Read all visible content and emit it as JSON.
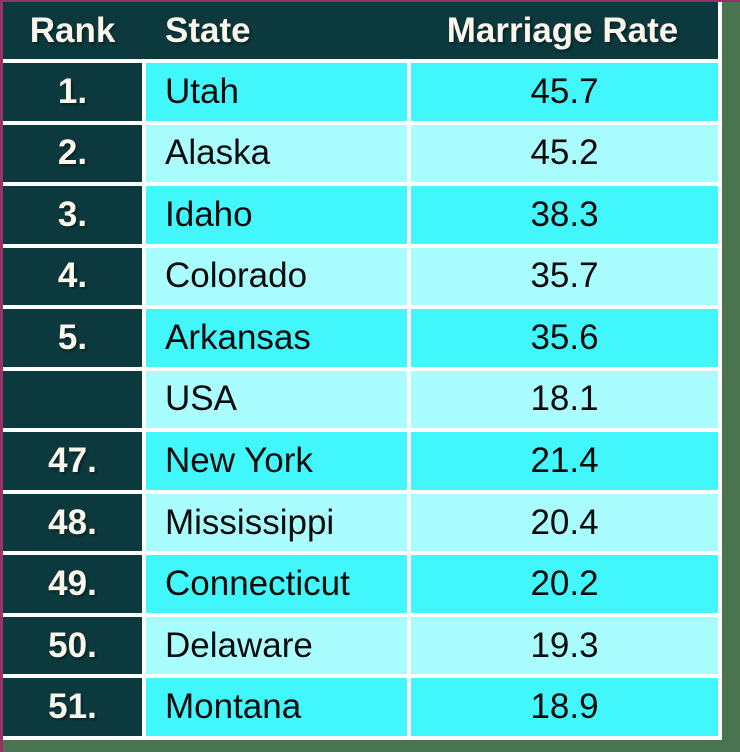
{
  "table": {
    "headers": [
      {
        "label": "Rank"
      },
      {
        "label": "State"
      },
      {
        "label": "Marriage Rate"
      }
    ],
    "rows": [
      {
        "rank": "1.",
        "state": "Utah",
        "rate": "45.7",
        "shade": "bright"
      },
      {
        "rank": "2.",
        "state": "Alaska",
        "rate": "45.2",
        "shade": "light"
      },
      {
        "rank": "3.",
        "state": "Idaho",
        "rate": "38.3",
        "shade": "bright"
      },
      {
        "rank": "4.",
        "state": "Colorado",
        "rate": "35.7",
        "shade": "light"
      },
      {
        "rank": "5.",
        "state": "Arkansas",
        "rate": "35.6",
        "shade": "bright"
      },
      {
        "rank": "",
        "state": "USA",
        "rate": "18.1",
        "shade": "light"
      },
      {
        "rank": "47.",
        "state": "New York",
        "rate": "21.4",
        "shade": "bright"
      },
      {
        "rank": "48.",
        "state": "Mississippi",
        "rate": "20.4",
        "shade": "light"
      },
      {
        "rank": "49.",
        "state": "Connecticut",
        "rate": "20.2",
        "shade": "bright"
      },
      {
        "rank": "50.",
        "state": "Delaware",
        "rate": "19.3",
        "shade": "light"
      },
      {
        "rank": "51.",
        "state": "Montana",
        "rate": "18.9",
        "shade": "bright"
      }
    ]
  },
  "chart_data": {
    "type": "table",
    "columns": [
      "Rank",
      "State",
      "Marriage Rate"
    ],
    "rows": [
      [
        "1.",
        "Utah",
        45.7
      ],
      [
        "2.",
        "Alaska",
        45.2
      ],
      [
        "3.",
        "Idaho",
        38.3
      ],
      [
        "4.",
        "Colorado",
        35.7
      ],
      [
        "5.",
        "Arkansas",
        35.6
      ],
      [
        "",
        "USA",
        18.1
      ],
      [
        "47.",
        "New York",
        21.4
      ],
      [
        "48.",
        "Mississippi",
        20.4
      ],
      [
        "49.",
        "Connecticut",
        20.2
      ],
      [
        "50.",
        "Delaware",
        19.3
      ],
      [
        "51.",
        "Montana",
        18.9
      ]
    ]
  },
  "colors": {
    "magenta": "#993366",
    "green": "#4A7350",
    "teal": "#0C393D",
    "cyanBright": "#42F7FB",
    "cyanLight": "#A9FDFF",
    "gridWhite": "#FFFFFF",
    "headerText": "#FBF6EC",
    "bodyText": "#0A0A0A"
  }
}
